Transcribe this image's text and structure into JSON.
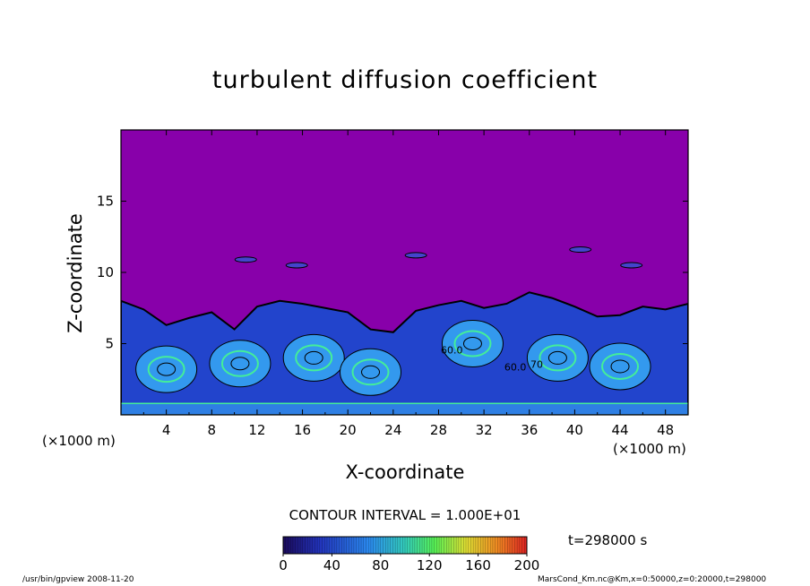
{
  "chart_data": {
    "type": "heatmap",
    "title": "turbulent diffusion coefficient",
    "xlabel": "X-coordinate",
    "ylabel": "Z-coordinate",
    "x_unit_label": "(×1000 m)",
    "xlim": [
      0,
      50
    ],
    "ylim": [
      0,
      20
    ],
    "x_ticks": [
      4,
      8,
      12,
      16,
      20,
      24,
      28,
      32,
      36,
      40,
      44,
      48
    ],
    "y_ticks": [
      5,
      10,
      15
    ],
    "contour_interval_text": "CONTOUR INTERVAL = 1.000E+01",
    "colorbar": {
      "min": 0,
      "max": 200,
      "ticks": [
        0,
        40,
        80,
        120,
        160,
        200
      ]
    },
    "colorbar_tick_labels": [
      "0",
      "40",
      "80",
      "120",
      "160",
      "200"
    ],
    "mixed_layer_top_km": [
      [
        0,
        8.0
      ],
      [
        2,
        7.4
      ],
      [
        4,
        6.3
      ],
      [
        6,
        6.8
      ],
      [
        8,
        7.2
      ],
      [
        10,
        6.0
      ],
      [
        12,
        7.6
      ],
      [
        14,
        8.0
      ],
      [
        16,
        7.8
      ],
      [
        18,
        7.5
      ],
      [
        20,
        7.2
      ],
      [
        22,
        6.0
      ],
      [
        24,
        5.8
      ],
      [
        26,
        7.3
      ],
      [
        28,
        7.7
      ],
      [
        30,
        8.0
      ],
      [
        32,
        7.5
      ],
      [
        34,
        7.8
      ],
      [
        36,
        8.6
      ],
      [
        38,
        8.2
      ],
      [
        40,
        7.6
      ],
      [
        42,
        6.9
      ],
      [
        44,
        7.0
      ],
      [
        46,
        7.6
      ],
      [
        48,
        7.4
      ],
      [
        50,
        7.8
      ]
    ],
    "inline_labels": [
      {
        "text": "60.0",
        "x": 28.2,
        "y": 4.3
      },
      {
        "text": "60.0",
        "x": 33.8,
        "y": 3.1
      },
      {
        "text": "70",
        "x": 36.1,
        "y": 3.3
      }
    ],
    "time_label": "t=298000 s",
    "colors": {
      "upper_background": "#8800aa",
      "low": "#2244cc",
      "mid": "#3399ee",
      "high": "#44ee99"
    }
  },
  "footer": {
    "left": "/usr/bin/gpview   2008-11-20",
    "right": "MarsCond_Km.nc@Km,x=0:50000,z=0:20000,t=298000"
  }
}
